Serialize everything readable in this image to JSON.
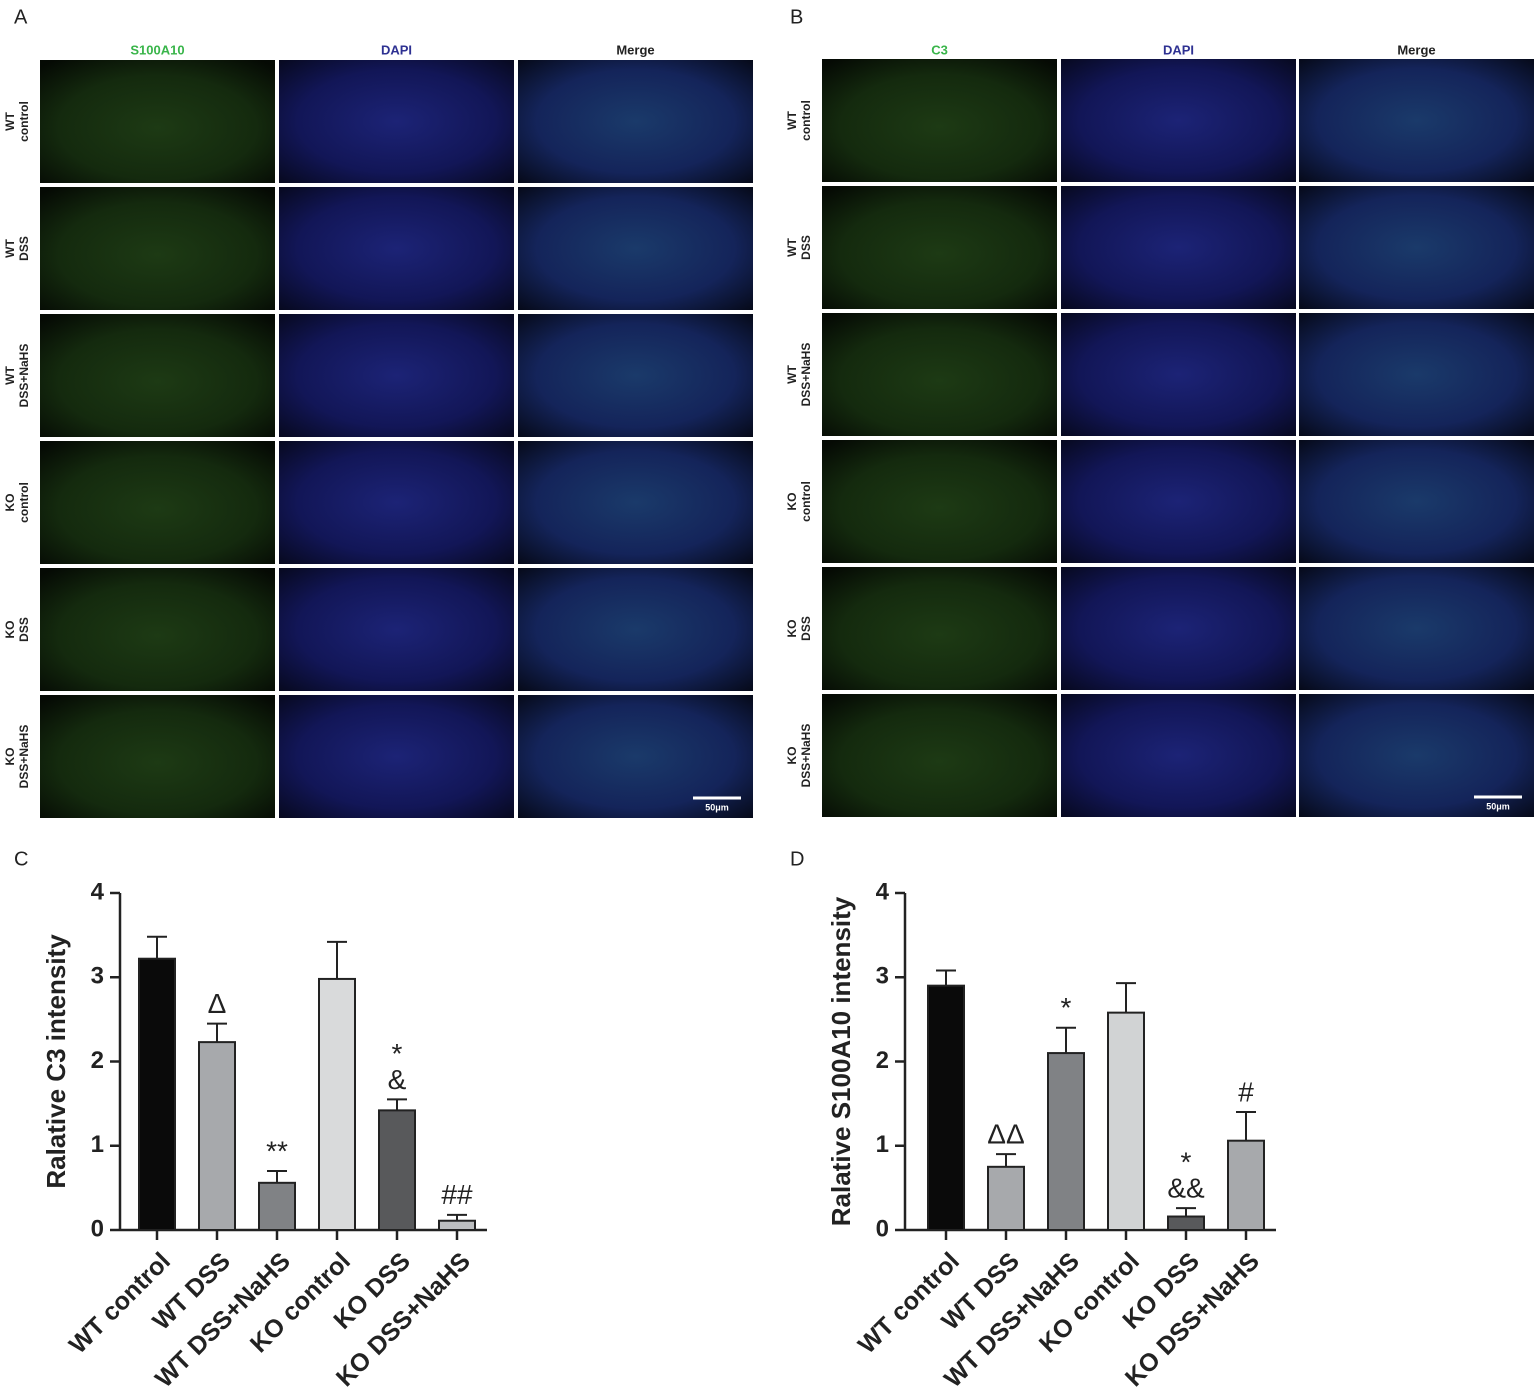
{
  "panels": [
    {
      "label": "A",
      "columns": [
        "S100A10",
        "DAPI",
        "Merge"
      ],
      "rows": [
        [
          "WT",
          "control"
        ],
        [
          "WT",
          "DSS"
        ],
        [
          "WT",
          "DSS+NaHS"
        ],
        [
          "KO",
          "control"
        ],
        [
          "KO",
          "DSS"
        ],
        [
          "KO",
          "DSS+NaHS"
        ]
      ],
      "scale_bar": "50μm"
    },
    {
      "label": "B",
      "columns": [
        "C3",
        "DAPI",
        "Merge"
      ],
      "rows": [
        [
          "WT",
          "control"
        ],
        [
          "WT",
          "DSS"
        ],
        [
          "WT",
          "DSS+NaHS"
        ],
        [
          "KO",
          "control"
        ],
        [
          "KO",
          "DSS"
        ],
        [
          "KO",
          "DSS+NaHS"
        ]
      ],
      "scale_bar": "50μm"
    }
  ],
  "chart_data": [
    {
      "type": "bar",
      "label": "C",
      "ylabel": "Ralative C3 intensity",
      "categories": [
        "WT control",
        "WT DSS",
        "WT DSS+NaHS",
        "KO control",
        "KO DSS",
        "KO DSS+NaHS"
      ],
      "values": [
        3.22,
        2.23,
        0.56,
        2.98,
        1.42,
        0.11
      ],
      "errors": [
        0.26,
        0.22,
        0.14,
        0.44,
        0.13,
        0.07
      ],
      "bar_labels": [
        null,
        "Δ",
        "**",
        null,
        [
          "*",
          "&"
        ],
        "##"
      ],
      "colors": [
        "#0a0a0a",
        "#a7a9ac",
        "#808285",
        "#d9dadb",
        "#58595b",
        "#bcbec0"
      ],
      "ylim": [
        0,
        4
      ],
      "yticks": [
        0,
        1,
        2,
        3,
        4
      ]
    },
    {
      "type": "bar",
      "label": "D",
      "ylabel": "Ralative S100A10 intensity",
      "categories": [
        "WT control",
        "WT DSS",
        "WT DSS+NaHS",
        "KO control",
        "KO DSS",
        "KO DSS+NaHS"
      ],
      "values": [
        2.9,
        0.75,
        2.1,
        2.58,
        0.16,
        1.06
      ],
      "errors": [
        0.18,
        0.15,
        0.3,
        0.35,
        0.1,
        0.34
      ],
      "bar_labels": [
        null,
        "ΔΔ",
        "*",
        null,
        [
          "*",
          "&&"
        ],
        "#"
      ],
      "colors": [
        "#0a0a0a",
        "#a7a9ac",
        "#808285",
        "#d1d3d4",
        "#58595b",
        "#a7a9ac"
      ],
      "ylim": [
        0,
        4
      ],
      "yticks": [
        0,
        1,
        2,
        3,
        4
      ]
    }
  ]
}
